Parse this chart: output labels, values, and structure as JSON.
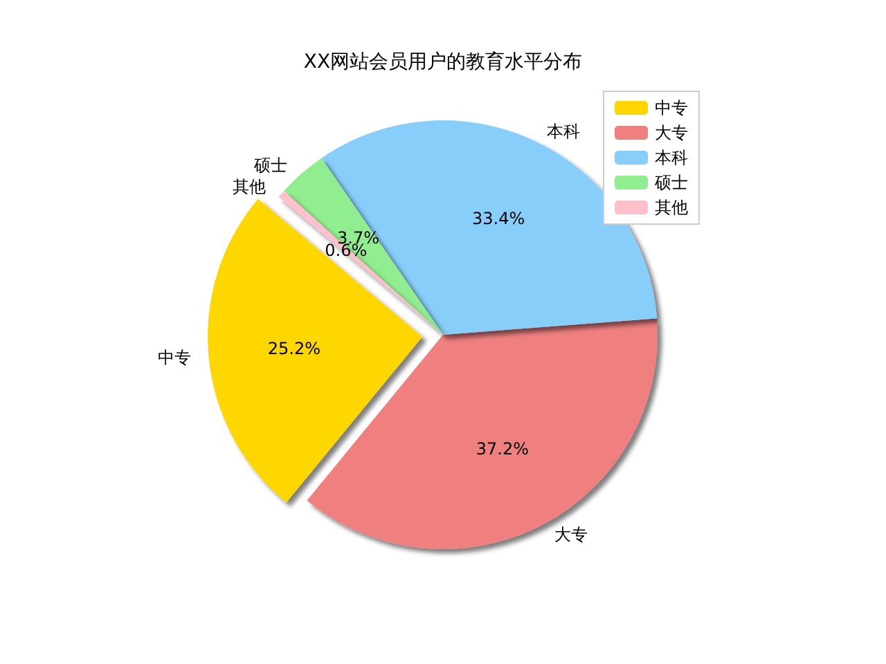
{
  "chart_data": {
    "type": "pie",
    "title": "XX网站会员用户的教育水平分布",
    "categories": [
      "中专",
      "大专",
      "本科",
      "硕士",
      "其他"
    ],
    "values": [
      25.2,
      37.2,
      33.4,
      3.7,
      0.6
    ],
    "colors": [
      "#ffd700",
      "#f08080",
      "#87cefa",
      "#90ee90",
      "#ffc0cb"
    ],
    "value_labels": [
      "25.2%",
      "37.2%",
      "33.4%",
      "3.7%",
      "0.6%"
    ],
    "legend": "top right"
  }
}
